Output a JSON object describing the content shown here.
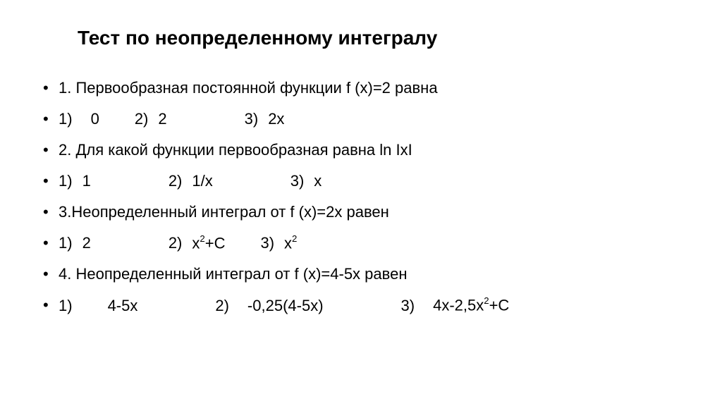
{
  "title": "Тест по неопределенному интегралу",
  "lines": {
    "q1": "1. Первообразная постоянной функции f (x)=2 равна",
    "q1_a1_prefix": "1)",
    "q1_a1_val": "0",
    "q1_a2_prefix": "2)",
    "q1_a2_val": "2",
    "q1_a3_prefix": "3)",
    "q1_a3_val": "2х",
    "q2": "2. Для какой функции первообразная равна ln IxI",
    "q2_a1_prefix": "1)",
    "q2_a1_val": "1",
    "q2_a2_prefix": "2)",
    "q2_a2_val": "1/x",
    "q2_a3_prefix": "3)",
    "q2_a3_val": "x",
    "q3": "3.Неопределенный интеграл от f (x)=2x равен",
    "q3_a1_prefix": "1)",
    "q3_a1_val": "2",
    "q3_a2_prefix": "2)",
    "q3_a2_val_pre": "x",
    "q3_a2_sup": "2",
    "q3_a2_val_post": "+C",
    "q3_a3_prefix": "3)",
    "q3_a3_val_pre": "x",
    "q3_a3_sup": "2",
    "q4": "4. Неопределенный интеграл от f (x)=4-5x равен",
    "q4_a1_prefix": "1)",
    "q4_a1_val": "4-5x",
    "q4_a2_prefix": "2)",
    "q4_a2_val": "-0,25(4-5x)",
    "q4_a3_prefix": "3)",
    "q4_a3_val_pre": "4x-2,5x",
    "q4_a3_sup": "2",
    "q4_a3_val_post": "+C"
  },
  "styling": {
    "background_color": "#ffffff",
    "text_color": "#000000",
    "title_fontsize": 28,
    "body_fontsize": 22,
    "font_family": "Arial"
  }
}
